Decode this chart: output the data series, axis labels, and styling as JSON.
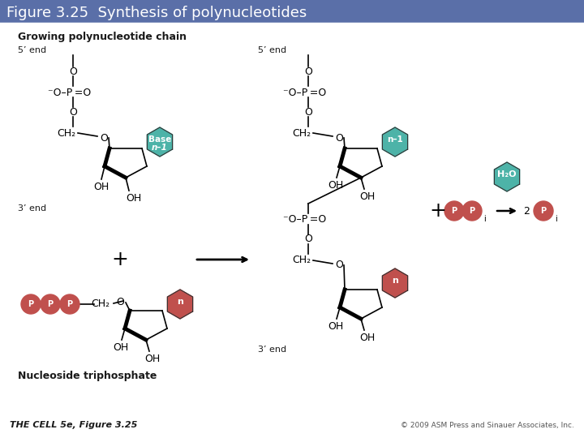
{
  "title": "Figure 3.25  Synthesis of polynucleotides",
  "title_bg": "#5a6fa8",
  "title_fg": "#ffffff",
  "title_fontsize": 13,
  "footer_left": "THE CELL 5e, Figure 3.25",
  "footer_right": "© 2009 ASM Press and Sinauer Associates, Inc.",
  "bg_color": "#ffffff",
  "base_n1_color": "#4db3a8",
  "base_n_color": "#c0504d",
  "ppp_color": "#c0504d",
  "pp_color": "#c0504d",
  "pi_color": "#c0504d",
  "h2o_color": "#4db3a8",
  "arrow_color": "#1a1a1a",
  "text_color": "#1a1a1a"
}
